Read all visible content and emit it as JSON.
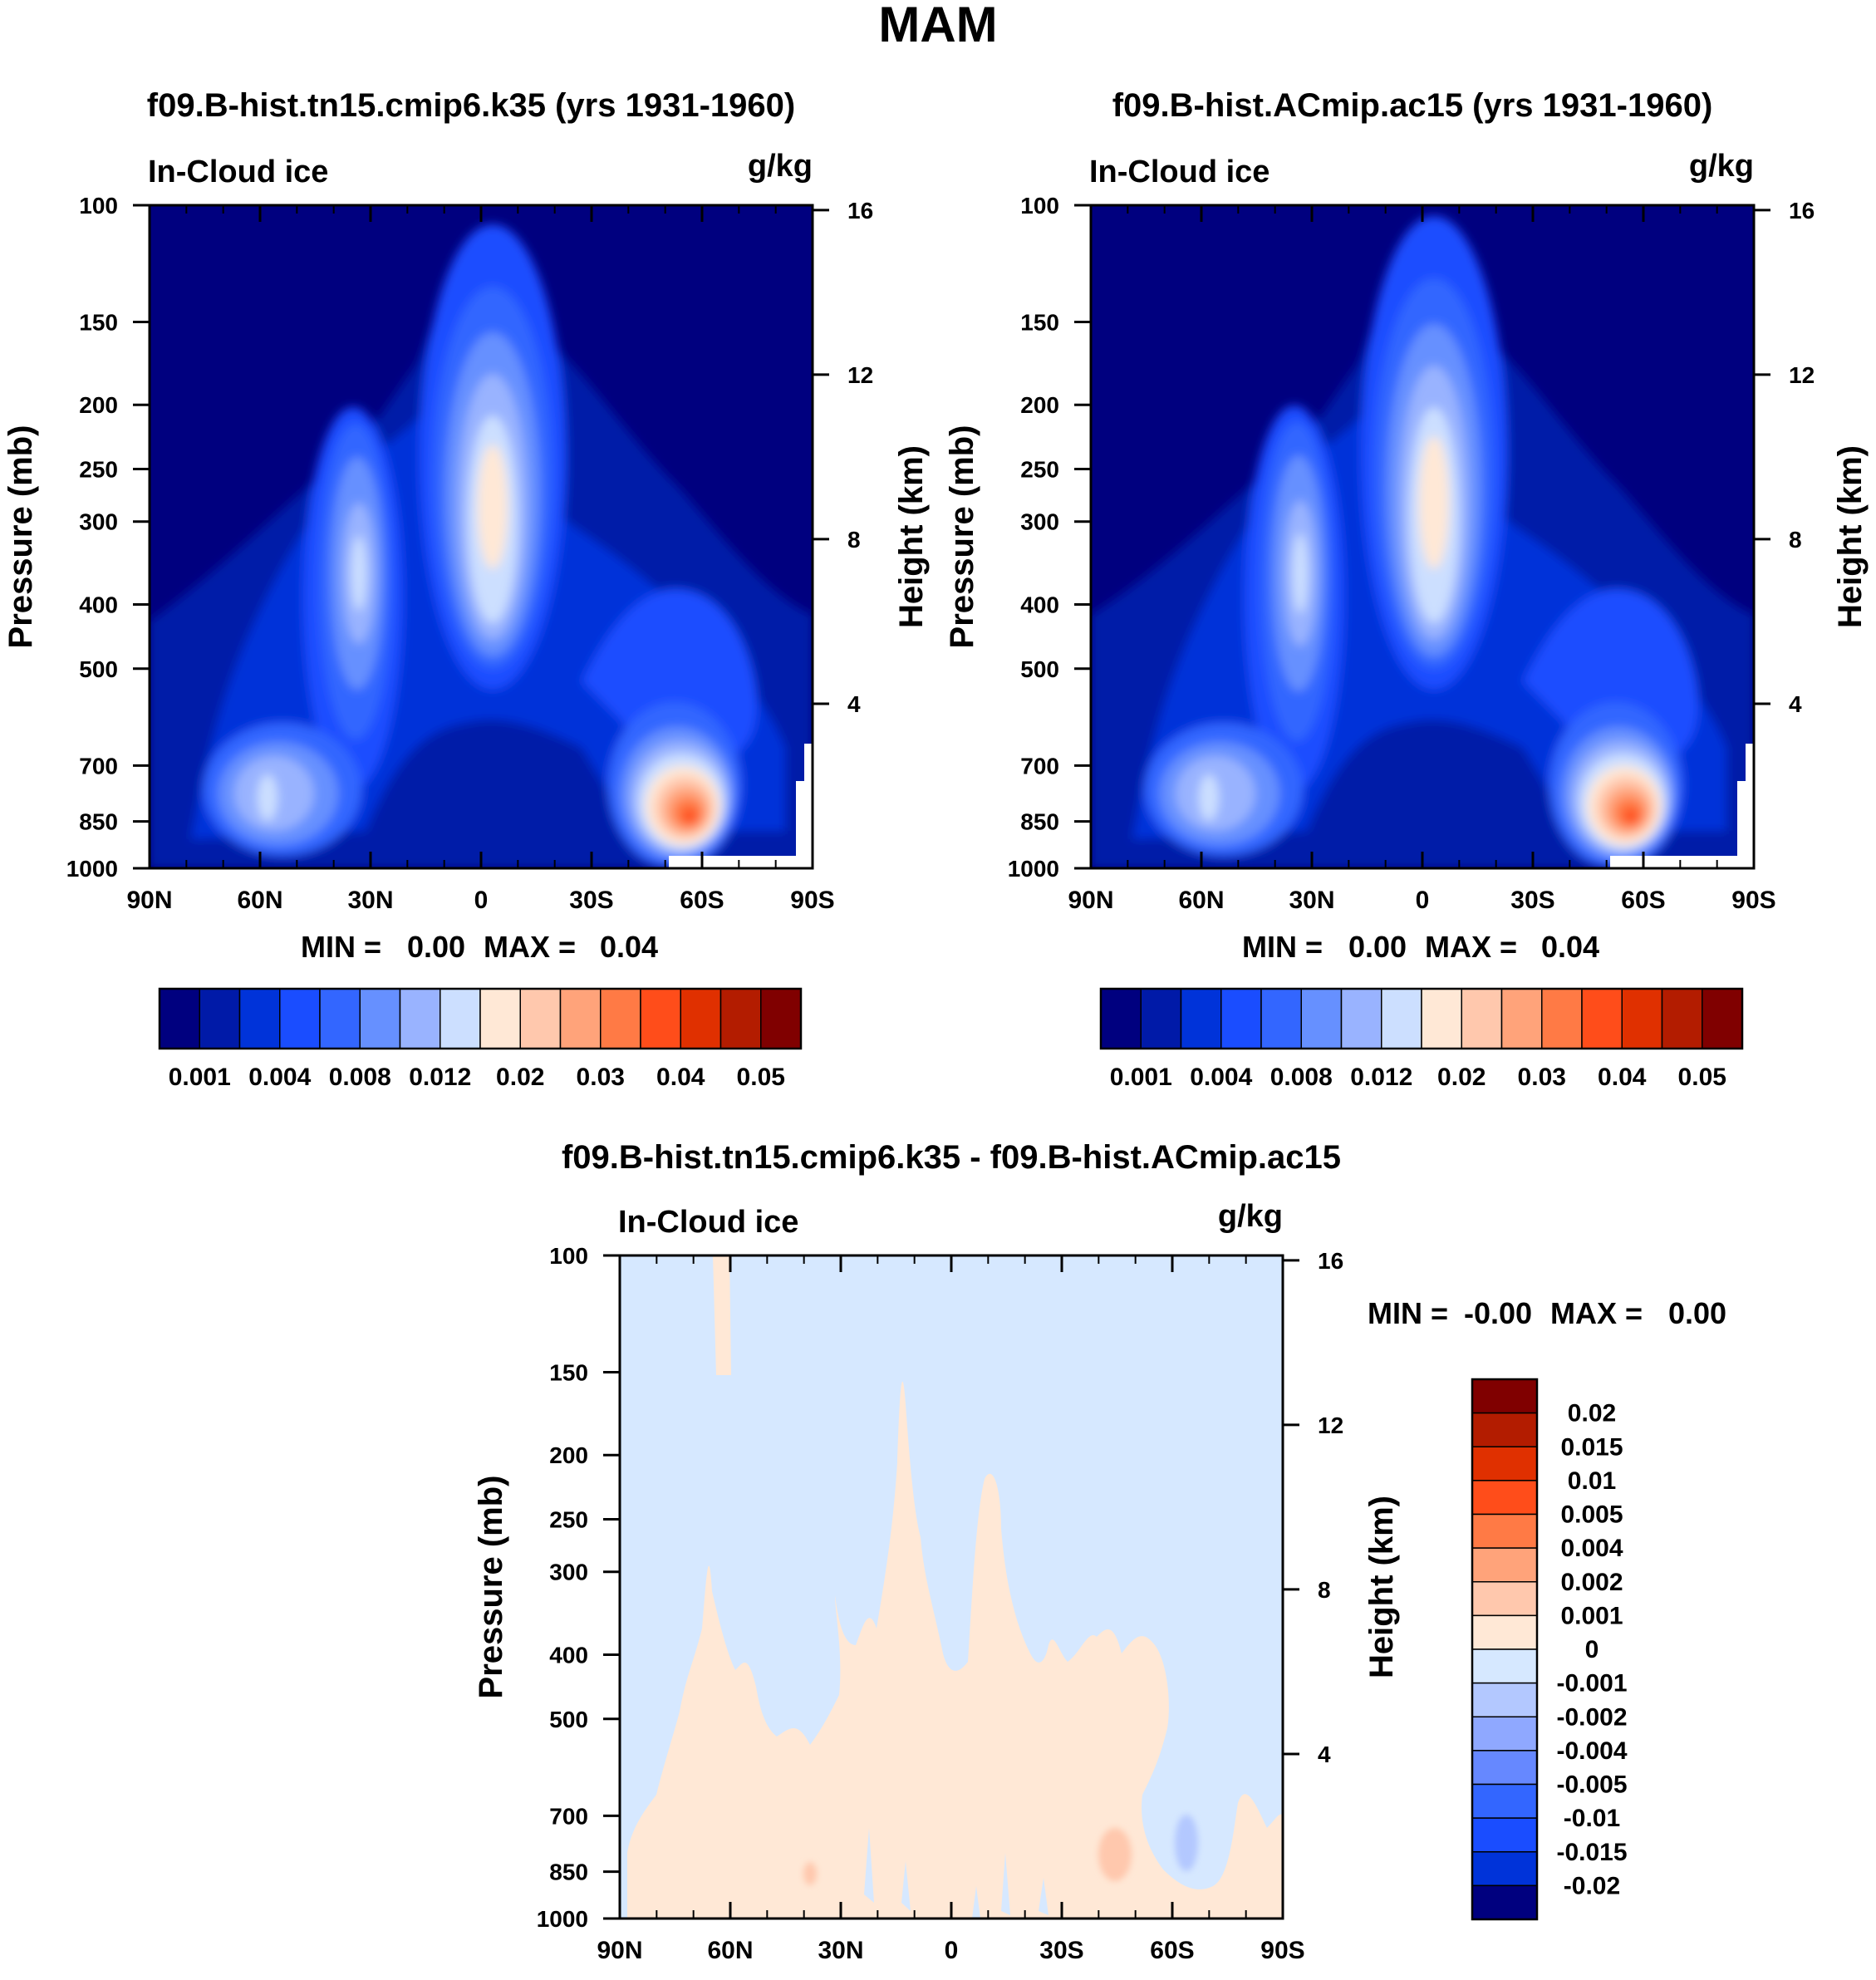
{
  "title": "MAM",
  "chart_data": [
    {
      "type": "heatmap",
      "title": "f09.B-hist.tn15.cmip6.k35 (yrs 1931-1960)",
      "variable": "In-Cloud ice",
      "units": "g/kg",
      "ylabel": "Pressure (mb)",
      "ylabel_right": "Height (km)",
      "xticks": [
        "90N",
        "60N",
        "30N",
        "0",
        "30S",
        "60S",
        "90S"
      ],
      "yticks": [
        "100",
        "150",
        "200",
        "250",
        "300",
        "400",
        "500",
        "700",
        "850",
        "1000"
      ],
      "height_ticks": [
        "16",
        "12",
        "8",
        "4"
      ],
      "min_label": "MIN =",
      "min_value": "0.00",
      "max_label": "MAX =",
      "max_value": "0.04",
      "levels": [
        "0.001",
        "0.004",
        "0.008",
        "0.012",
        "0.02",
        "0.03",
        "0.04",
        "0.05"
      ],
      "colors": [
        "#00007f",
        "#001aa8",
        "#0033d9",
        "#1a4dff",
        "#3366ff",
        "#6690ff",
        "#99b3ff",
        "#ccdfff",
        "#ffe8d6",
        "#ffc8ad",
        "#ffa37a",
        "#ff7a45",
        "#ff4d1a",
        "#e03000",
        "#b31c00",
        "#800000"
      ],
      "features": [
        {
          "name": "equatorial-tower",
          "lat": 2,
          "p_top": 130,
          "p_bottom": 650,
          "peak": 0.02
        },
        {
          "name": "nh-midlat-column",
          "lat": 33,
          "p_top": 210,
          "p_bottom": 750,
          "peak": 0.012
        },
        {
          "name": "nh-lowlevel",
          "lat": 53,
          "p_top": 600,
          "p_bottom": 950,
          "peak": 0.012
        },
        {
          "name": "sh-lowlevel-max",
          "lat": -57,
          "p_top": 550,
          "p_bottom": 990,
          "peak": 0.04
        }
      ]
    },
    {
      "type": "heatmap",
      "title": "f09.B-hist.ACmip.ac15 (yrs 1931-1960)",
      "variable": "In-Cloud ice",
      "units": "g/kg",
      "ylabel": "Pressure (mb)",
      "ylabel_right": "Height (km)",
      "xticks": [
        "90N",
        "60N",
        "30N",
        "0",
        "30S",
        "60S",
        "90S"
      ],
      "yticks": [
        "100",
        "150",
        "200",
        "250",
        "300",
        "400",
        "500",
        "700",
        "850",
        "1000"
      ],
      "height_ticks": [
        "16",
        "12",
        "8",
        "4"
      ],
      "min_label": "MIN =",
      "min_value": "0.00",
      "max_label": "MAX =",
      "max_value": "0.04",
      "levels": [
        "0.001",
        "0.004",
        "0.008",
        "0.012",
        "0.02",
        "0.03",
        "0.04",
        "0.05"
      ],
      "colors": [
        "#00007f",
        "#001aa8",
        "#0033d9",
        "#1a4dff",
        "#3366ff",
        "#6690ff",
        "#99b3ff",
        "#ccdfff",
        "#ffe8d6",
        "#ffc8ad",
        "#ffa37a",
        "#ff7a45",
        "#ff4d1a",
        "#e03000",
        "#b31c00",
        "#800000"
      ],
      "features": [
        {
          "name": "equatorial-tower",
          "lat": 2,
          "p_top": 125,
          "p_bottom": 650,
          "peak": 0.02
        },
        {
          "name": "nh-midlat-column",
          "lat": 33,
          "p_top": 205,
          "p_bottom": 750,
          "peak": 0.012
        },
        {
          "name": "nh-lowlevel",
          "lat": 53,
          "p_top": 600,
          "p_bottom": 950,
          "peak": 0.012
        },
        {
          "name": "sh-lowlevel-max",
          "lat": -57,
          "p_top": 550,
          "p_bottom": 990,
          "peak": 0.04
        }
      ]
    },
    {
      "type": "heatmap",
      "title": "f09.B-hist.tn15.cmip6.k35 - f09.B-hist.ACmip.ac15",
      "variable": "In-Cloud ice",
      "units": "g/kg",
      "ylabel": "Pressure (mb)",
      "ylabel_right": "Height (km)",
      "xticks": [
        "90N",
        "60N",
        "30N",
        "0",
        "30S",
        "60S",
        "90S"
      ],
      "yticks": [
        "100",
        "150",
        "200",
        "250",
        "300",
        "400",
        "500",
        "700",
        "850",
        "1000"
      ],
      "height_ticks": [
        "16",
        "12",
        "8",
        "4"
      ],
      "min_label": "MIN =",
      "min_value": "-0.00",
      "max_label": "MAX =",
      "max_value": "0.00",
      "levels": [
        "0.02",
        "0.015",
        "0.01",
        "0.005",
        "0.004",
        "0.002",
        "0.001",
        "0",
        "-0.001",
        "-0.002",
        "-0.004",
        "-0.005",
        "-0.01",
        "-0.015",
        "-0.02"
      ],
      "colors": [
        "#800000",
        "#b31c00",
        "#e03000",
        "#ff4d1a",
        "#ff7a45",
        "#ffa37a",
        "#ffc8ad",
        "#ffe8d6",
        "#d6e8ff",
        "#b3c8ff",
        "#8fa8ff",
        "#6688ff",
        "#3366ff",
        "#1a4dff",
        "#0033d9",
        "#00007f"
      ],
      "background_range": "-0.001 to 0",
      "features": [
        {
          "name": "positive-region",
          "lat_from": 85,
          "lat_to": -85,
          "p_top": 330,
          "p_bottom": 1000,
          "range": "0 to 0.001"
        },
        {
          "name": "positive-tower",
          "lat": 12,
          "p_top": 140,
          "p_bottom": 500,
          "range": "0 to 0.001"
        },
        {
          "name": "positive-strip",
          "lat": 62,
          "p_top": 100,
          "p_bottom": 155,
          "range": "0 to 0.001"
        },
        {
          "name": "positive-spot",
          "lat": -45,
          "p_top": 720,
          "p_bottom": 900,
          "range": "0.001 to 0.002"
        },
        {
          "name": "negative-spot",
          "lat": -63,
          "p_top": 700,
          "p_bottom": 950,
          "range": "-0.001 to -0.002"
        }
      ]
    }
  ]
}
